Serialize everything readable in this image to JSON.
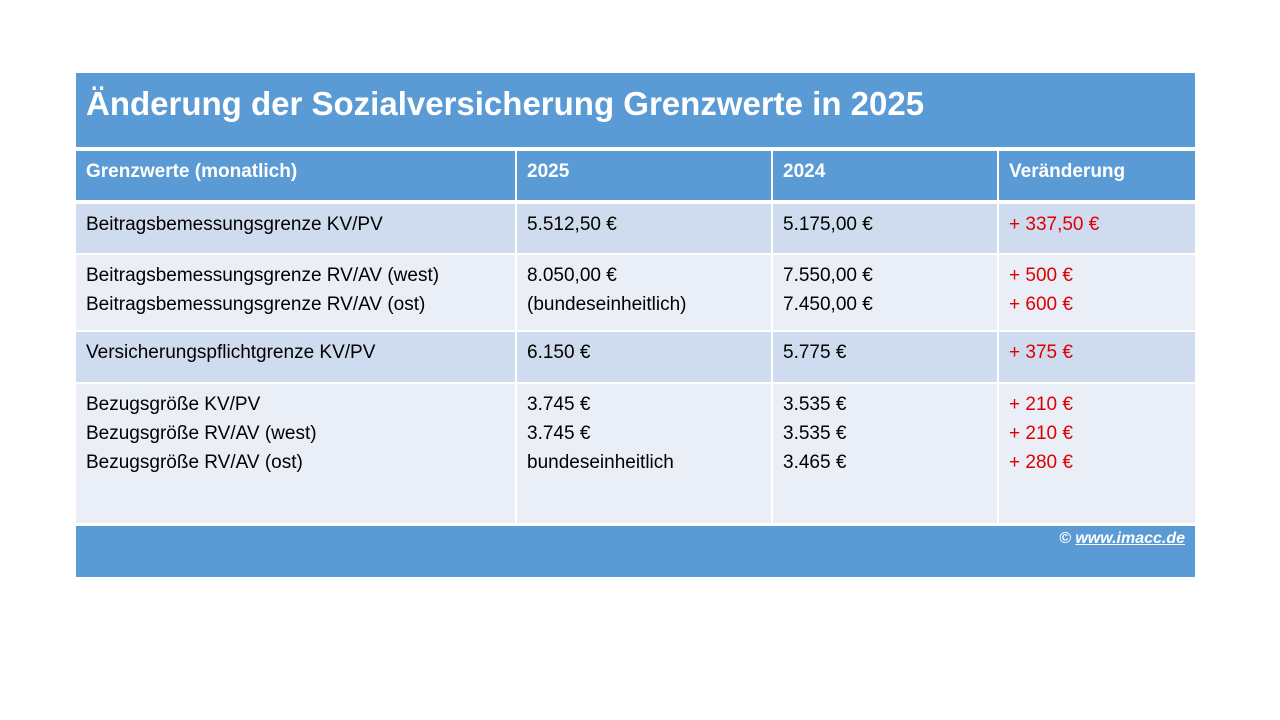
{
  "title": "Änderung der Sozialversicherung Grenzwerte in 2025",
  "table": {
    "header": [
      "Grenzwerte (monatlich)",
      "2025",
      "2024",
      "Veränderung"
    ],
    "rows": [
      [
        [
          "Beitragsbemessungsgrenze KV/PV"
        ],
        [
          "5.512,50 €"
        ],
        [
          "5.175,00 €"
        ],
        [
          "+ 337,50 €"
        ]
      ],
      [
        [
          "Beitragsbemessungsgrenze RV/AV (west)",
          "Beitragsbemessungsgrenze RV/AV (ost)"
        ],
        [
          "8.050,00 €",
          "(bundeseinheitlich)"
        ],
        [
          "7.550,00 €",
          "7.450,00 €"
        ],
        [
          "+ 500 €",
          "+ 600 €"
        ]
      ],
      [
        [
          "Versicherungspflichtgrenze KV/PV"
        ],
        [
          "6.150 €"
        ],
        [
          "5.775 €"
        ],
        [
          "+ 375 €"
        ]
      ],
      [
        [
          "Bezugsgröße KV/PV",
          "Bezugsgröße RV/AV (west)",
          "Bezugsgröße RV/AV (ost)"
        ],
        [
          "3.745 €",
          "3.745 €",
          "bundeseinheitlich"
        ],
        [
          "3.535 €",
          "3.535 €",
          "3.465 €"
        ],
        [
          "+ 210 €",
          "+ 210 €",
          "+ 280 €"
        ]
      ]
    ]
  },
  "footer": {
    "symbol": "©",
    "link": "www.imacc.de"
  }
}
